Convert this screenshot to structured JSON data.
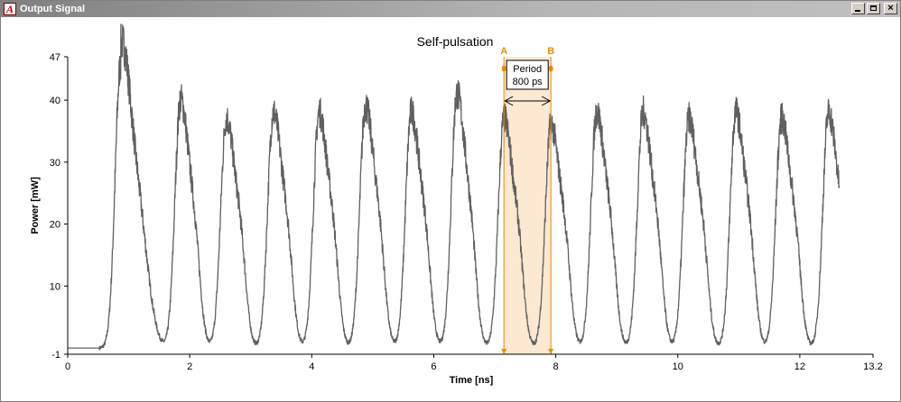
{
  "window": {
    "title": "Output Signal",
    "icon": "app-a-icon",
    "buttons": [
      "minimize",
      "maximize",
      "close"
    ]
  },
  "chart_data": {
    "type": "line",
    "title": "Self-pulsation",
    "xlabel": "Time [ns]",
    "ylabel": "Power [mW]",
    "xlim": [
      0,
      13.2
    ],
    "ylim": [
      -1,
      47
    ],
    "xticks": [
      0,
      2,
      4,
      6,
      8,
      10,
      12,
      13.2
    ],
    "xtick_labels": [
      "0",
      "2",
      "4",
      "6",
      "8",
      "10",
      "12",
      "13.2"
    ],
    "yticks": [
      -1,
      10,
      20,
      30,
      40,
      47
    ],
    "ytick_labels": [
      "-1",
      "10",
      "20",
      "30",
      "40",
      "47"
    ],
    "grid": false,
    "series_color": "#606060",
    "pulses": [
      {
        "t": 0.87,
        "peak": 46
      },
      {
        "t": 1.85,
        "peak": 40
      },
      {
        "t": 2.6,
        "peak": 37
      },
      {
        "t": 3.37,
        "peak": 38
      },
      {
        "t": 4.12,
        "peak": 38
      },
      {
        "t": 4.88,
        "peak": 39
      },
      {
        "t": 5.63,
        "peak": 38
      },
      {
        "t": 6.38,
        "peak": 41
      },
      {
        "t": 7.15,
        "peak": 37
      },
      {
        "t": 7.92,
        "peak": 36
      },
      {
        "t": 8.67,
        "peak": 38
      },
      {
        "t": 9.43,
        "peak": 38
      },
      {
        "t": 10.18,
        "peak": 37
      },
      {
        "t": 10.95,
        "peak": 38
      },
      {
        "t": 11.7,
        "peak": 37
      },
      {
        "t": 12.47,
        "peak": 38
      }
    ],
    "baseline": 0,
    "signal_start": 0.52,
    "signal_end": 12.65,
    "markers": {
      "a": {
        "label": "A",
        "t": 7.15
      },
      "b": {
        "label": "B",
        "t": 7.92
      },
      "color": "#e88a00",
      "region_fill": "#fde8d2"
    },
    "annotation": {
      "line1": "Period",
      "line2": "800 ps"
    }
  }
}
